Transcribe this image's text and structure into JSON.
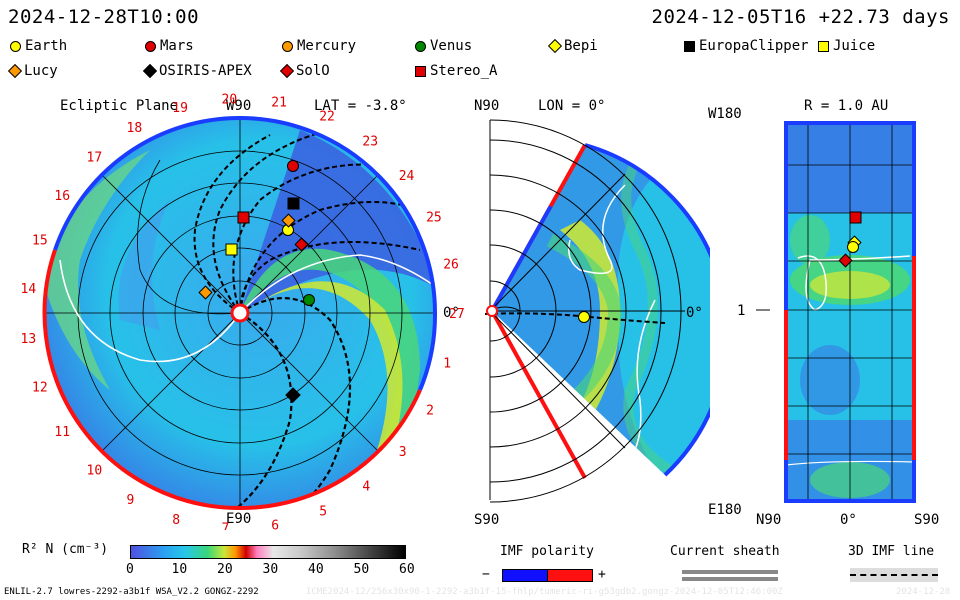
{
  "header": {
    "model_time": "2024-12-28T10:00",
    "ref_time": "2024-12-05T16 +22.73 days"
  },
  "legend": [
    {
      "label": "Earth",
      "color": "#ffff00",
      "shape": "circle"
    },
    {
      "label": "Mars",
      "color": "#e00000",
      "shape": "circle"
    },
    {
      "label": "Mercury",
      "color": "#ff9900",
      "shape": "circle"
    },
    {
      "label": "Venus",
      "color": "#008800",
      "shape": "circle"
    },
    {
      "label": "Bepi",
      "color": "#ffff00",
      "shape": "diamond"
    },
    {
      "label": "EuropaClipper",
      "color": "#000000",
      "shape": "square"
    },
    {
      "label": "Juice",
      "color": "#ffff00",
      "shape": "square"
    },
    {
      "label": "Lucy",
      "color": "#ff9900",
      "shape": "diamond"
    },
    {
      "label": "OSIRIS-APEX",
      "color": "#000000",
      "shape": "diamond"
    },
    {
      "label": "SolO",
      "color": "#e00000",
      "shape": "diamond"
    },
    {
      "label": "Stereo_A",
      "color": "#e00000",
      "shape": "square"
    }
  ],
  "panel_ecliptic": {
    "title": "Ecliptic Plane",
    "top_label": "W90",
    "bottom_label": "E90",
    "right_label": "0°",
    "lat_label": "LAT = -3.8°",
    "sector_numbers": [
      "1",
      "2",
      "3",
      "4",
      "5",
      "6",
      "7",
      "8",
      "9",
      "10",
      "11",
      "12",
      "13",
      "14",
      "15",
      "16",
      "17",
      "18",
      "19",
      "20",
      "21",
      "22",
      "23",
      "24",
      "25",
      "26",
      "27"
    ]
  },
  "panel_meridional": {
    "top_label": "N90",
    "bottom_label": "S90",
    "lon_label": "LON = 0°",
    "right_label": "0°"
  },
  "panel_map": {
    "title": "R = 1.0 AU",
    "top_left": "W180",
    "bottom_left": "E180",
    "mid_left": "1",
    "x_left": "N90",
    "x_mid": "0°",
    "x_right": "S90"
  },
  "colorbar": {
    "label": "R² N (cm⁻³)",
    "ticks": [
      "0",
      "10",
      "20",
      "30",
      "40",
      "50",
      "60"
    ]
  },
  "polarity": {
    "title": "IMF polarity",
    "minus": "−",
    "plus": "+"
  },
  "sheath": {
    "title": "Current sheath"
  },
  "imf_line": {
    "title": "3D IMF line"
  },
  "footer": {
    "run_info": "ENLIL-2.7 lowres-2292-a3b1f WSA_V2.2 GONGZ-2292",
    "path_info": "ICME2024-12/256x30x90-1-2292-a3b1f-15-fhlp/tumeric-ri-g53gdb2.gongz-2024-12-05T12:46:00Z",
    "date_stamp": "2024-12-28"
  }
}
